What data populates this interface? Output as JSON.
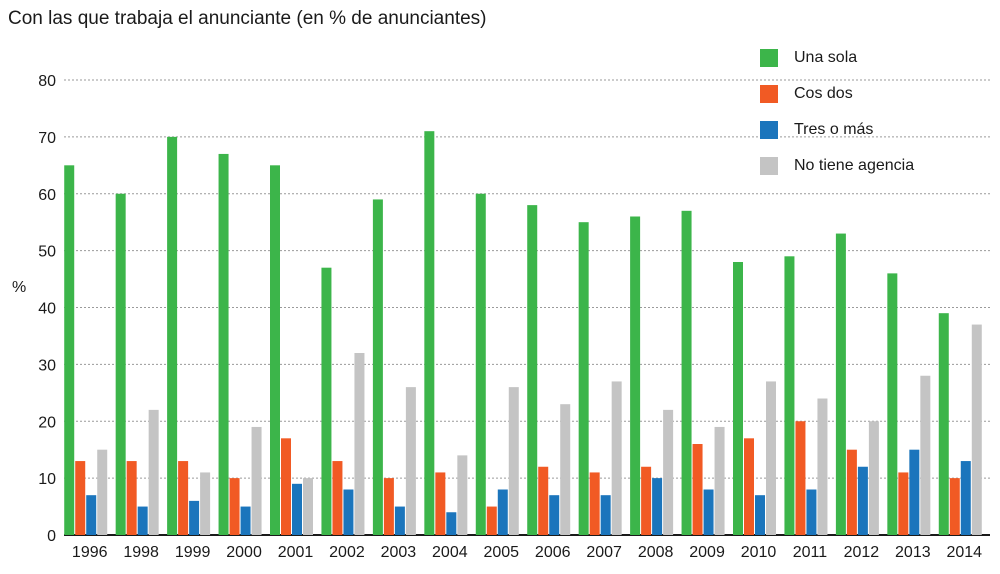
{
  "title": "Con las que trabaja el anunciante (en % de anunciantes)",
  "chart_data": {
    "type": "bar",
    "title": "Con las que trabaja el anunciante (en % de anunciantes)",
    "ylabel": "%",
    "xlabel": "",
    "ylim": [
      0,
      80
    ],
    "yticks": [
      0,
      10,
      20,
      30,
      40,
      50,
      60,
      70,
      80
    ],
    "grid": true,
    "legend_position": "top-right",
    "categories": [
      "1996",
      "1998",
      "1999",
      "2000",
      "2001",
      "2002",
      "2003",
      "2004",
      "2005",
      "2006",
      "2007",
      "2008",
      "2009",
      "2010",
      "2011",
      "2012",
      "2013",
      "2014"
    ],
    "series": [
      {
        "name": "Una sola",
        "color": "#3cb54a",
        "values": [
          65,
          60,
          70,
          67,
          65,
          47,
          59,
          71,
          60,
          58,
          55,
          56,
          57,
          48,
          49,
          53,
          46,
          39
        ]
      },
      {
        "name": "Cos dos",
        "color": "#f15a24",
        "values": [
          13,
          13,
          13,
          10,
          17,
          13,
          10,
          11,
          5,
          12,
          11,
          12,
          16,
          17,
          20,
          15,
          11,
          10
        ]
      },
      {
        "name": "Tres o más",
        "color": "#1b75bc",
        "values": [
          7,
          5,
          6,
          5,
          9,
          8,
          5,
          4,
          8,
          7,
          7,
          10,
          8,
          7,
          8,
          12,
          15,
          13
        ]
      },
      {
        "name": "No tiene agencia",
        "color": "#c4c4c4",
        "values": [
          15,
          22,
          11,
          19,
          10,
          32,
          26,
          14,
          26,
          23,
          27,
          22,
          19,
          27,
          24,
          20,
          28,
          37
        ]
      }
    ]
  }
}
